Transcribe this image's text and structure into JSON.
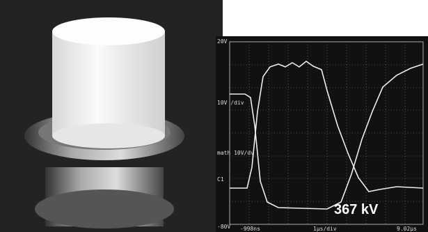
{
  "scope": {
    "top_label": "20V",
    "bottom_label": "-80V",
    "left_labels": [
      "10V /div",
      "math 10V/dv",
      "C1"
    ],
    "time_start": "-998ns",
    "time_div": "1µs/div",
    "time_end": "9.02µs",
    "annotation": "367 kV"
  }
}
